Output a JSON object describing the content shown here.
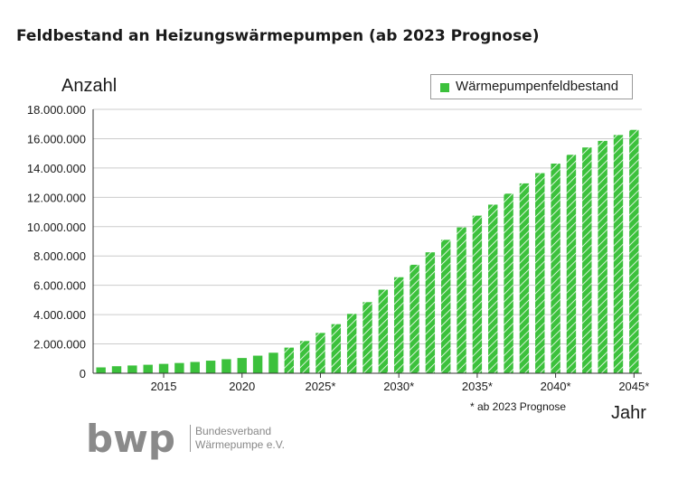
{
  "title": "Feldbestand an Heizungswärmepumpen (ab 2023 Prognose)",
  "footnote": "* ab 2023 Prognose",
  "organization": {
    "logo_text": "bwp",
    "name_line1": "Bundesverband",
    "name_line2": "Wärmepumpe e.V."
  },
  "colors": {
    "bar": "#3cc13c",
    "hatch": "#ffffff",
    "grid": "#cccccc",
    "logo": "#8a8a8a"
  },
  "chart_data": {
    "type": "bar",
    "title": "Feldbestand an Heizungswärmepumpen (ab 2023 Prognose)",
    "xlabel": "Jahr",
    "ylabel": "Anzahl",
    "ylim": [
      0,
      18000000
    ],
    "ytick_labels": [
      "0",
      "2.000.000",
      "4.000.000",
      "6.000.000",
      "8.000.000",
      "10.000.000",
      "12.000.000",
      "14.000.000",
      "16.000.000",
      "18.000.000"
    ],
    "xtick_labels": [
      {
        "year": 2015,
        "label": "2015"
      },
      {
        "year": 2020,
        "label": "2020"
      },
      {
        "year": 2025,
        "label": "2025*"
      },
      {
        "year": 2030,
        "label": "2030*"
      },
      {
        "year": 2035,
        "label": "2035*"
      },
      {
        "year": 2040,
        "label": "2040*"
      },
      {
        "year": 2045,
        "label": "2045*"
      }
    ],
    "legend": {
      "entries": [
        "Wärmepumpenfeldbestand"
      ],
      "position": "top-right"
    },
    "grid": "horizontal",
    "forecast_from": 2023,
    "series": [
      {
        "name": "Wärmepumpenfeldbestand",
        "x": [
          2011,
          2012,
          2013,
          2014,
          2015,
          2016,
          2017,
          2018,
          2019,
          2020,
          2021,
          2022,
          2023,
          2024,
          2025,
          2026,
          2027,
          2028,
          2029,
          2030,
          2031,
          2032,
          2033,
          2034,
          2035,
          2036,
          2037,
          2038,
          2039,
          2040,
          2041,
          2042,
          2043,
          2044,
          2045
        ],
        "values": [
          400000,
          480000,
          530000,
          580000,
          640000,
          700000,
          770000,
          860000,
          960000,
          1040000,
          1200000,
          1400000,
          1750000,
          2200000,
          2750000,
          3350000,
          4050000,
          4850000,
          5700000,
          6550000,
          7400000,
          8250000,
          9100000,
          9950000,
          10750000,
          11500000,
          12250000,
          12950000,
          13650000,
          14300000,
          14900000,
          15400000,
          15850000,
          16250000,
          16600000
        ]
      }
    ]
  }
}
